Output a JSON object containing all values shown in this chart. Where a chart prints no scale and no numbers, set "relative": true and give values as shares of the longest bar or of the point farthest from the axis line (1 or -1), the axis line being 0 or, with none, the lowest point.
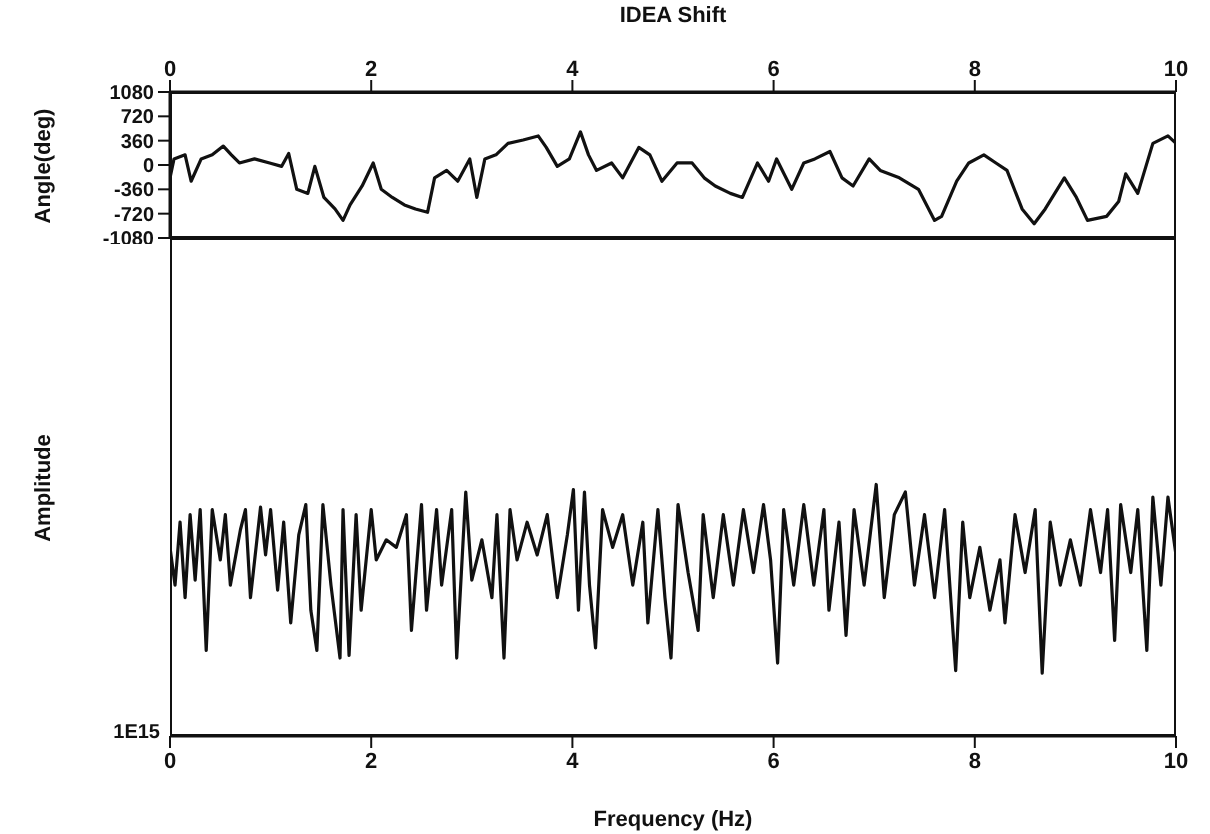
{
  "chart_data": [
    {
      "type": "line",
      "title": "IDEA Shift",
      "ylabel": "Angle(deg)",
      "xlim": [
        0,
        10
      ],
      "xticks": [
        0,
        2,
        4,
        6,
        8,
        10
      ],
      "ylim": [
        -1080,
        1080
      ],
      "yticks": [
        -1080,
        -720,
        -360,
        0,
        360,
        720,
        1080
      ],
      "series": [
        {
          "color": "#111111",
          "x": [
            0,
            0.04,
            0.15,
            0.21,
            0.31,
            0.42,
            0.53,
            0.61,
            0.69,
            0.84,
            0.99,
            1.11,
            1.18,
            1.26,
            1.37,
            1.44,
            1.53,
            1.64,
            1.72,
            1.79,
            1.91,
            2.02,
            2.1,
            2.21,
            2.33,
            2.44,
            2.56,
            2.63,
            2.75,
            2.86,
            2.98,
            3.05,
            3.13,
            3.24,
            3.36,
            3.51,
            3.66,
            3.74,
            3.85,
            3.97,
            4.08,
            4.16,
            4.24,
            4.39,
            4.5,
            4.66,
            4.77,
            4.89,
            5.04,
            5.19,
            5.31,
            5.42,
            5.57,
            5.69,
            5.84,
            5.95,
            6.03,
            6.18,
            6.3,
            6.41,
            6.56,
            6.68,
            6.79,
            6.95,
            7.06,
            7.25,
            7.44,
            7.6,
            7.67,
            7.82,
            7.94,
            8.09,
            8.21,
            8.32,
            8.47,
            8.59,
            8.7,
            8.89,
            9.01,
            9.12,
            9.31,
            9.43,
            9.5,
            9.62,
            9.77,
            9.92,
            10
          ],
          "values": [
            -190,
            90,
            150,
            -240,
            90,
            150,
            280,
            150,
            30,
            90,
            30,
            -20,
            170,
            -360,
            -420,
            -20,
            -480,
            -650,
            -820,
            -590,
            -310,
            30,
            -360,
            -480,
            -590,
            -650,
            -700,
            -190,
            -80,
            -240,
            90,
            -480,
            90,
            150,
            320,
            370,
            430,
            260,
            -20,
            90,
            490,
            150,
            -80,
            30,
            -190,
            260,
            150,
            -240,
            30,
            30,
            -190,
            -310,
            -420,
            -480,
            30,
            -240,
            90,
            -360,
            30,
            90,
            200,
            -190,
            -310,
            90,
            -80,
            -190,
            -360,
            -820,
            -760,
            -240,
            30,
            150,
            30,
            -80,
            -650,
            -870,
            -650,
            -190,
            -480,
            -820,
            -760,
            -540,
            -130,
            -420,
            320,
            430,
            320
          ]
        }
      ]
    },
    {
      "type": "line",
      "relative": true,
      "xlabel": "Frequency (Hz)",
      "ylabel": "Amplitude",
      "xlim": [
        0,
        10
      ],
      "xticks": [
        0,
        2,
        4,
        6,
        8,
        10
      ],
      "annotations": [
        "1E15"
      ],
      "series": [
        {
          "color": "#111111",
          "x": [
            0,
            0.05,
            0.1,
            0.15,
            0.2,
            0.25,
            0.3,
            0.36,
            0.42,
            0.5,
            0.55,
            0.6,
            0.7,
            0.75,
            0.8,
            0.9,
            0.95,
            1.0,
            1.07,
            1.13,
            1.2,
            1.28,
            1.35,
            1.4,
            1.46,
            1.52,
            1.6,
            1.69,
            1.72,
            1.78,
            1.85,
            1.9,
            2.0,
            2.05,
            2.15,
            2.25,
            2.35,
            2.4,
            2.5,
            2.55,
            2.65,
            2.7,
            2.8,
            2.85,
            2.94,
            3.0,
            3.1,
            3.2,
            3.25,
            3.32,
            3.38,
            3.45,
            3.55,
            3.65,
            3.75,
            3.85,
            3.95,
            4.01,
            4.06,
            4.12,
            4.17,
            4.23,
            4.3,
            4.4,
            4.5,
            4.6,
            4.7,
            4.75,
            4.85,
            4.92,
            4.98,
            5.05,
            5.15,
            5.25,
            5.3,
            5.4,
            5.5,
            5.6,
            5.7,
            5.8,
            5.9,
            5.97,
            6.04,
            6.1,
            6.2,
            6.3,
            6.4,
            6.5,
            6.55,
            6.65,
            6.72,
            6.8,
            6.9,
            7.02,
            7.1,
            7.2,
            7.31,
            7.4,
            7.5,
            7.6,
            7.7,
            7.81,
            7.88,
            7.95,
            8.05,
            8.15,
            8.25,
            8.3,
            8.4,
            8.5,
            8.6,
            8.67,
            8.75,
            8.85,
            8.95,
            9.05,
            9.15,
            9.25,
            9.32,
            9.39,
            9.45,
            9.55,
            9.62,
            9.71,
            9.77,
            9.85,
            9.92,
            10
          ],
          "values": [
            0.75,
            0.6,
            0.85,
            0.55,
            0.88,
            0.62,
            0.9,
            0.34,
            0.9,
            0.7,
            0.88,
            0.6,
            0.82,
            0.9,
            0.55,
            0.91,
            0.72,
            0.9,
            0.58,
            0.85,
            0.45,
            0.8,
            0.92,
            0.5,
            0.34,
            0.92,
            0.6,
            0.31,
            0.9,
            0.32,
            0.88,
            0.5,
            0.9,
            0.7,
            0.78,
            0.75,
            0.88,
            0.42,
            0.92,
            0.5,
            0.9,
            0.6,
            0.9,
            0.31,
            0.97,
            0.62,
            0.78,
            0.55,
            0.88,
            0.31,
            0.9,
            0.7,
            0.85,
            0.72,
            0.88,
            0.55,
            0.8,
            0.98,
            0.5,
            0.97,
            0.6,
            0.35,
            0.9,
            0.75,
            0.88,
            0.6,
            0.85,
            0.45,
            0.9,
            0.55,
            0.31,
            0.92,
            0.65,
            0.42,
            0.88,
            0.55,
            0.88,
            0.6,
            0.9,
            0.65,
            0.92,
            0.7,
            0.29,
            0.9,
            0.6,
            0.92,
            0.6,
            0.9,
            0.5,
            0.85,
            0.4,
            0.9,
            0.6,
            1.0,
            0.55,
            0.88,
            0.97,
            0.6,
            0.88,
            0.55,
            0.9,
            0.26,
            0.85,
            0.55,
            0.75,
            0.5,
            0.7,
            0.45,
            0.88,
            0.65,
            0.9,
            0.25,
            0.85,
            0.6,
            0.78,
            0.6,
            0.9,
            0.65,
            0.9,
            0.38,
            0.92,
            0.65,
            0.9,
            0.34,
            0.95,
            0.6,
            0.95,
            0.72
          ]
        }
      ]
    }
  ]
}
